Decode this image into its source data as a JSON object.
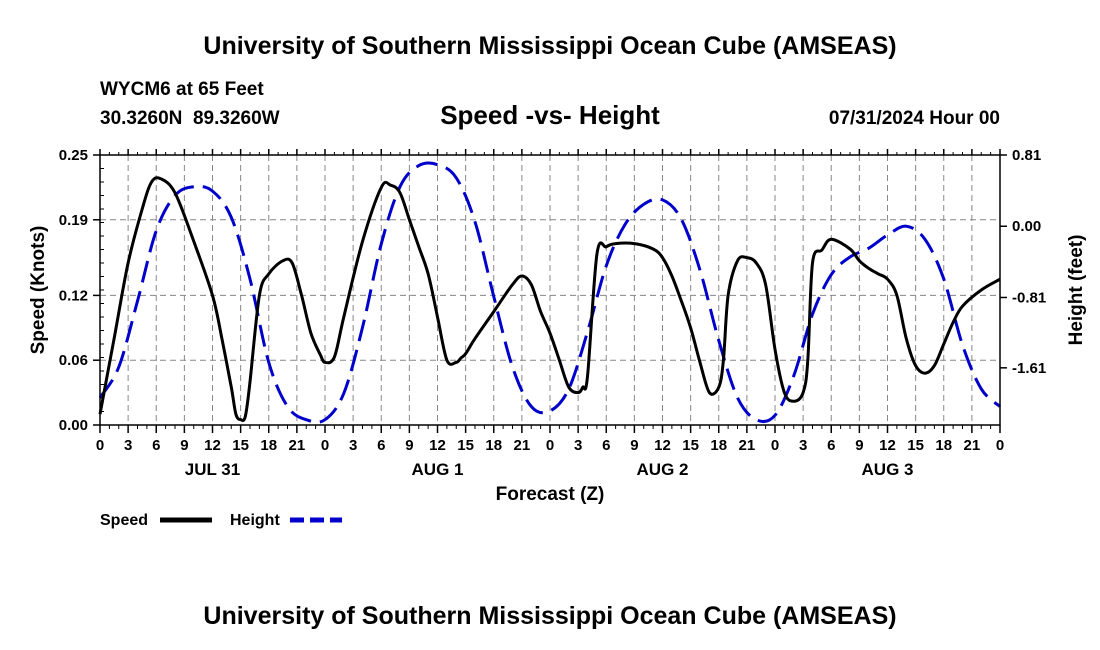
{
  "header": {
    "title": "University of Southern Mississippi Ocean Cube (AMSEAS)",
    "station": "WYCM6 at 65 Feet",
    "coords": "30.3260N  89.3260W",
    "chart_title": "Speed -vs- Height",
    "date": "07/31/2024 Hour 00"
  },
  "footer": {
    "title": "University of Southern Mississippi Ocean Cube (AMSEAS)"
  },
  "legend": {
    "speed_label": "Speed",
    "height_label": "Height"
  },
  "colors": {
    "speed": "#000000",
    "height": "#0000cc",
    "grid": "#888888"
  },
  "chart_data": {
    "type": "line",
    "title": "Speed -vs- Height",
    "xlabel": "Forecast (Z)",
    "ylabel": "Speed (Knots)",
    "y2label": "Height (feet)",
    "xlim": [
      0,
      96
    ],
    "ylim": [
      0,
      0.25
    ],
    "y2lim": [
      -2.26,
      0.81
    ],
    "x_ticks": [
      0,
      3,
      6,
      9,
      12,
      15,
      18,
      21,
      24,
      27,
      30,
      33,
      36,
      39,
      42,
      45,
      48,
      51,
      54,
      57,
      60,
      63,
      66,
      69,
      72,
      75,
      78,
      81,
      84,
      87,
      90,
      93,
      96
    ],
    "x_tick_labels": [
      "0",
      "3",
      "6",
      "9",
      "12",
      "15",
      "18",
      "21",
      "0",
      "3",
      "6",
      "9",
      "12",
      "15",
      "18",
      "21",
      "0",
      "3",
      "6",
      "9",
      "12",
      "15",
      "18",
      "21",
      "0",
      "3",
      "6",
      "9",
      "12",
      "15",
      "18",
      "21",
      "0"
    ],
    "y_ticks": [
      0.0,
      0.06,
      0.12,
      0.19,
      0.25
    ],
    "y_tick_labels": [
      "0.00",
      "0.06",
      "0.12",
      "0.19",
      "0.25"
    ],
    "y2_ticks": [
      -1.61,
      -0.81,
      0.0,
      0.81
    ],
    "y2_tick_labels": [
      "-1.61",
      "-0.81",
      "0.00",
      "0.81"
    ],
    "day_labels": [
      {
        "x": 12,
        "label": "JUL 31"
      },
      {
        "x": 36,
        "label": "AUG 1"
      },
      {
        "x": 60,
        "label": "AUG 2"
      },
      {
        "x": 84,
        "label": "AUG 3"
      }
    ],
    "series": [
      {
        "name": "Speed",
        "axis": "left",
        "x": [
          0,
          1.5,
          3,
          4.5,
          5.5,
          6.5,
          8,
          10,
          12,
          13,
          14,
          14.5,
          15,
          15.5,
          16,
          17,
          18,
          19.5,
          20.5,
          21.5,
          22.5,
          23.5,
          24,
          25,
          26,
          28,
          30,
          31,
          32,
          33,
          34,
          35,
          36,
          37,
          38,
          38.5,
          39,
          40,
          42,
          44,
          45,
          46,
          47,
          48,
          49,
          50,
          51,
          51.5,
          52,
          53,
          54,
          55,
          57,
          59,
          60,
          61,
          62,
          63,
          64,
          65,
          66,
          66.5,
          67,
          68,
          69,
          70,
          71,
          72,
          73,
          74,
          75,
          75.5,
          76,
          77,
          78,
          80,
          81,
          82,
          83,
          84,
          85,
          86,
          87,
          88,
          89,
          90,
          91,
          92,
          94,
          96
        ],
        "values": [
          0.01,
          0.08,
          0.15,
          0.2,
          0.225,
          0.228,
          0.215,
          0.17,
          0.12,
          0.08,
          0.035,
          0.01,
          0.005,
          0.008,
          0.04,
          0.12,
          0.14,
          0.152,
          0.15,
          0.12,
          0.085,
          0.065,
          0.058,
          0.063,
          0.1,
          0.17,
          0.22,
          0.222,
          0.215,
          0.19,
          0.165,
          0.14,
          0.1,
          0.06,
          0.058,
          0.062,
          0.066,
          0.08,
          0.105,
          0.13,
          0.138,
          0.13,
          0.105,
          0.085,
          0.06,
          0.035,
          0.03,
          0.035,
          0.045,
          0.158,
          0.165,
          0.168,
          0.168,
          0.163,
          0.155,
          0.138,
          0.115,
          0.09,
          0.058,
          0.03,
          0.035,
          0.06,
          0.12,
          0.152,
          0.155,
          0.15,
          0.13,
          0.07,
          0.03,
          0.022,
          0.03,
          0.06,
          0.15,
          0.162,
          0.172,
          0.163,
          0.152,
          0.145,
          0.14,
          0.135,
          0.12,
          0.08,
          0.055,
          0.048,
          0.055,
          0.075,
          0.095,
          0.11,
          0.125,
          0.135
        ]
      },
      {
        "name": "Height",
        "axis": "right",
        "x": [
          0,
          2,
          4,
          6,
          8,
          10,
          12,
          14,
          16,
          18,
          20,
          22,
          24,
          26,
          28,
          30,
          32,
          34,
          36,
          38,
          40,
          42,
          44,
          46,
          48,
          50,
          52,
          54,
          56,
          58,
          60,
          62,
          64,
          66,
          68,
          70,
          72,
          74,
          76,
          78,
          80,
          82,
          84,
          86,
          88,
          90,
          92,
          94,
          96
        ],
        "values": [
          -1.95,
          -1.6,
          -0.85,
          -0.05,
          0.35,
          0.45,
          0.4,
          0.1,
          -0.6,
          -1.55,
          -2.05,
          -2.2,
          -2.2,
          -1.9,
          -1.15,
          -0.2,
          0.45,
          0.69,
          0.7,
          0.55,
          0.05,
          -0.8,
          -1.6,
          -2.05,
          -2.1,
          -1.85,
          -1.2,
          -0.45,
          0.02,
          0.25,
          0.3,
          0.08,
          -0.5,
          -1.3,
          -1.95,
          -2.2,
          -2.15,
          -1.7,
          -1.0,
          -0.55,
          -0.35,
          -0.25,
          -0.1,
          0.0,
          -0.15,
          -0.6,
          -1.35,
          -1.85,
          -2.05
        ]
      }
    ]
  }
}
